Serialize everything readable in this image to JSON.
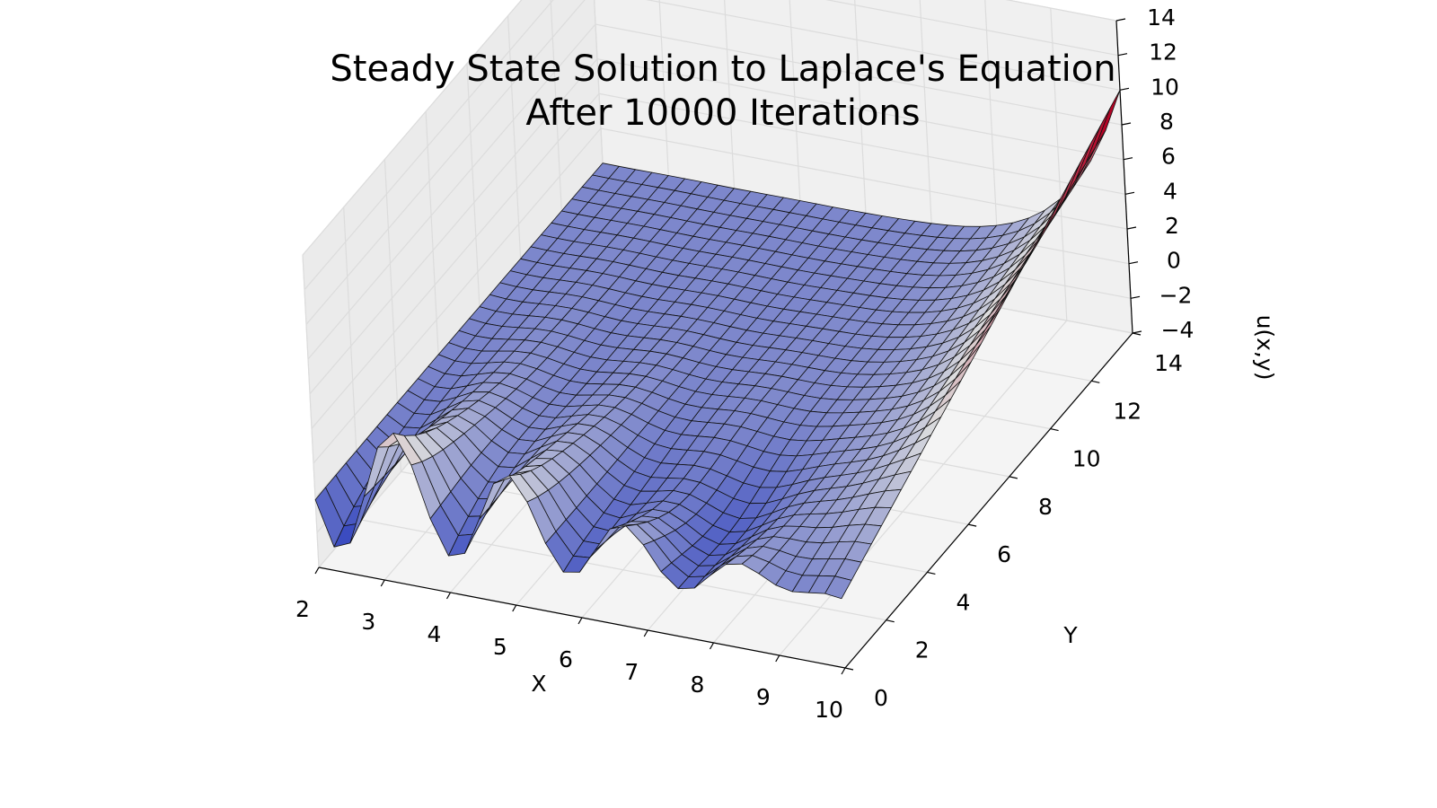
{
  "chart_data": {
    "type": "surface3d",
    "title_line1": "Steady State Solution to Laplace's Equation",
    "title_line2": "After 10000 Iterations",
    "xlabel": "X",
    "ylabel": "Y",
    "zlabel": "u(x,y)",
    "xlim": [
      2,
      10
    ],
    "ylim": [
      0,
      14
    ],
    "zlim": [
      -4,
      14
    ],
    "x_ticks": [
      "2",
      "3",
      "4",
      "5",
      "6",
      "7",
      "8",
      "9",
      "10"
    ],
    "y_ticks": [
      "0",
      "2",
      "4",
      "6",
      "8",
      "10",
      "12",
      "14"
    ],
    "z_ticks": [
      "−4",
      "−2",
      "0",
      "2",
      "4",
      "6",
      "8",
      "10",
      "12",
      "14"
    ],
    "grid": true,
    "colormap": "coolwarm",
    "colormap_colors": [
      "#3b4cc0",
      "#dddddd",
      "#b40426"
    ],
    "surface_x": [
      2,
      10
    ],
    "surface_y": [
      0,
      14
    ],
    "boundary_conditions": {
      "x_equals_10": "u rises linearly from 0 at y=0 to about 10 at y=14 (red ramp edge)",
      "y_equals_0": "oscillating boundary with peaks near 7-9 and troughs near -3"
    },
    "z_range_of_surface": [
      -3,
      10
    ]
  }
}
